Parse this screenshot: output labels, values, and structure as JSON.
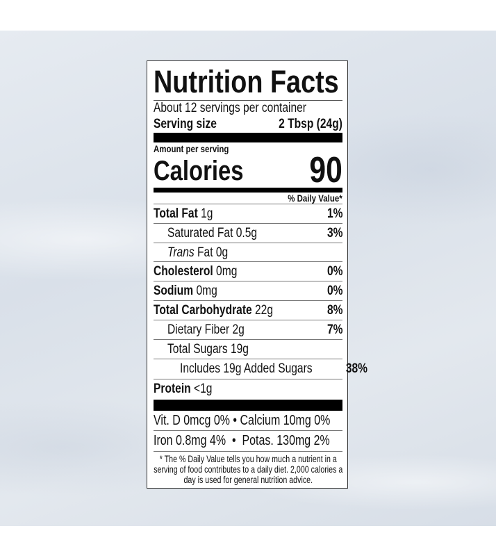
{
  "title": "Nutrition Facts",
  "servings_per_container": "About 12 servings per container",
  "serving_size": {
    "label": "Serving size",
    "value": "2 Tbsp (24g)"
  },
  "amount_per_serving": "Amount per serving",
  "calories": {
    "label": "Calories",
    "value": "90"
  },
  "daily_value_header": "% Daily Value*",
  "nutrients": [
    {
      "name": "Total Fat",
      "amount": "1g",
      "dv": "1%"
    },
    {
      "name": "Saturated Fat",
      "amount": "0.5g",
      "dv": "3%"
    },
    {
      "name": "Trans",
      "name_suffix": "Fat",
      "amount": "0g",
      "dv": ""
    },
    {
      "name": "Cholesterol",
      "amount": "0mg",
      "dv": "0%"
    },
    {
      "name": "Sodium",
      "amount": "0mg",
      "dv": "0%"
    },
    {
      "name": "Total Carbohydrate",
      "amount": "22g",
      "dv": "8%"
    },
    {
      "name": "Dietary Fiber",
      "amount": "2g",
      "dv": "7%"
    },
    {
      "name": "Total Sugars",
      "amount": "19g",
      "dv": ""
    },
    {
      "name": "Includes 19g Added Sugars",
      "amount": "",
      "dv": "38%"
    },
    {
      "name": "Protein",
      "amount": "<1g",
      "dv": ""
    }
  ],
  "micros": [
    {
      "left": "Vit. D 0mcg 0%",
      "right": "Calcium 10mg 0%"
    },
    {
      "left": "Iron 0.8mg 4%",
      "right": "Potas. 130mg 2%"
    }
  ],
  "bullet": "•",
  "footnote": "* The % Daily Value tells you how much a nutrient in a serving of food contributes to a daily diet. 2,000 calories a day is used for general nutrition advice."
}
